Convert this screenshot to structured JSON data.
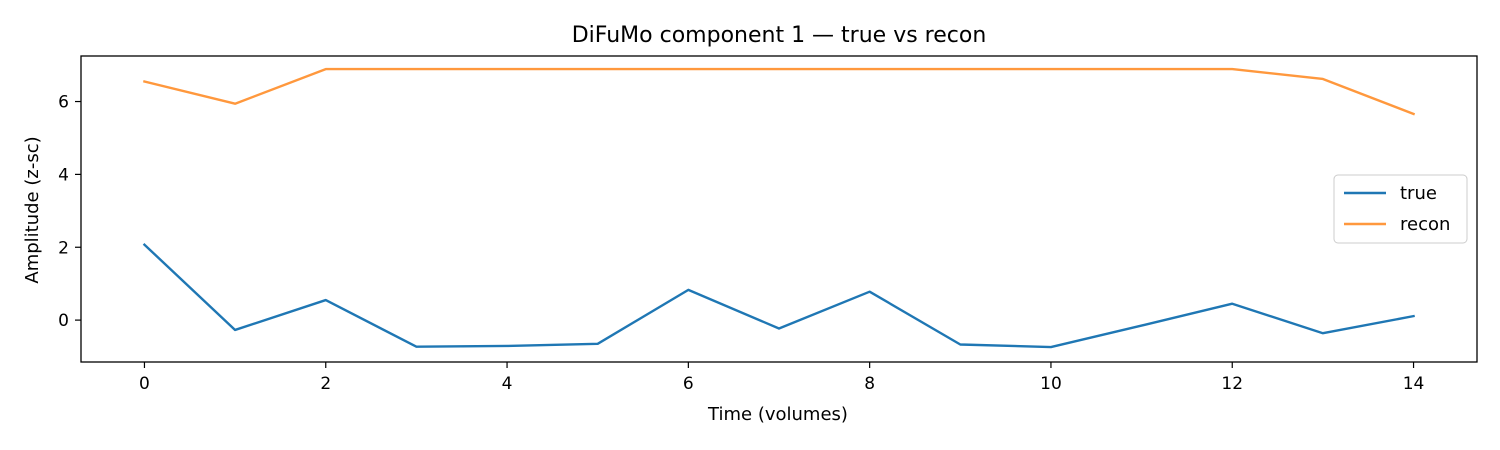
{
  "chart_data": {
    "type": "line",
    "title": "DiFuMo component 1 — true vs recon",
    "xlabel": "Time (volumes)",
    "ylabel": "Amplitude (z-sc)",
    "xlim": [
      -0.7,
      14.7
    ],
    "ylim": [
      -1.15,
      7.25
    ],
    "xticks": [
      0,
      2,
      4,
      6,
      8,
      10,
      12,
      14
    ],
    "yticks": [
      0,
      2,
      4,
      6
    ],
    "grid": false,
    "legend_position": "center-right",
    "x": [
      0,
      1,
      2,
      3,
      4,
      5,
      6,
      7,
      8,
      9,
      10,
      11,
      12,
      13,
      14
    ],
    "series": [
      {
        "name": "true",
        "color": "#1f77b4",
        "values": [
          2.07,
          -0.27,
          0.55,
          -0.73,
          -0.71,
          -0.65,
          0.83,
          -0.23,
          0.78,
          -0.67,
          -0.74,
          -0.15,
          0.45,
          -0.36,
          0.11
        ]
      },
      {
        "name": "recon",
        "color": "#ff983d",
        "values": [
          6.55,
          5.94,
          6.89,
          6.89,
          6.89,
          6.89,
          6.89,
          6.89,
          6.89,
          6.89,
          6.89,
          6.89,
          6.89,
          6.62,
          5.66
        ]
      }
    ]
  }
}
